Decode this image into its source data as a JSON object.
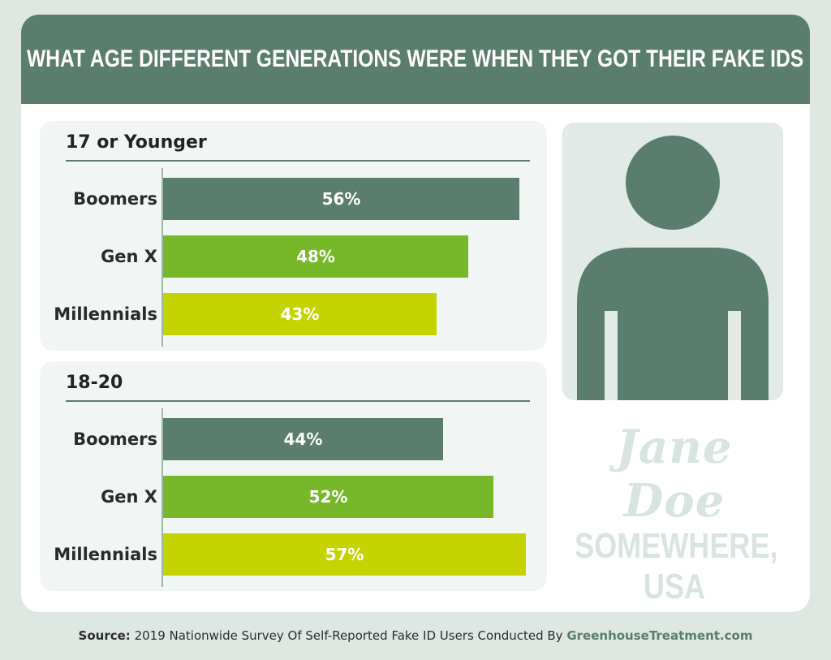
{
  "title": "WHAT AGE DIFFERENT GENERATIONS WERE WHEN THEY GOT THEIR FAKE IDS",
  "colors": {
    "boomers": "#5a7d6e",
    "gen_x": "#76b82a",
    "millennials": "#c5d400",
    "header": "#5a7d6e"
  },
  "chart_data": [
    {
      "type": "bar",
      "orientation": "horizontal",
      "title": "17 or Younger",
      "categories": [
        "Boomers",
        "Gen X",
        "Millennials"
      ],
      "values": [
        56,
        48,
        43
      ],
      "labels": [
        "56%",
        "48%",
        "43%"
      ],
      "xlim": [
        0,
        60
      ]
    },
    {
      "type": "bar",
      "orientation": "horizontal",
      "title": "18-20",
      "categories": [
        "Boomers",
        "Gen X",
        "Millennials"
      ],
      "values": [
        44,
        52,
        57
      ],
      "labels": [
        "44%",
        "52%",
        "57%"
      ],
      "xlim": [
        0,
        60
      ]
    }
  ],
  "id_card": {
    "icon": "person-silhouette-icon",
    "name": "Jane Doe",
    "location": "SOMEWHERE, USA"
  },
  "source": {
    "label": "Source:",
    "text": " 2019 Nationwide Survey Of Self-Reported Fake ID Users Conducted By ",
    "link": "GreenhouseTreatment.com"
  }
}
